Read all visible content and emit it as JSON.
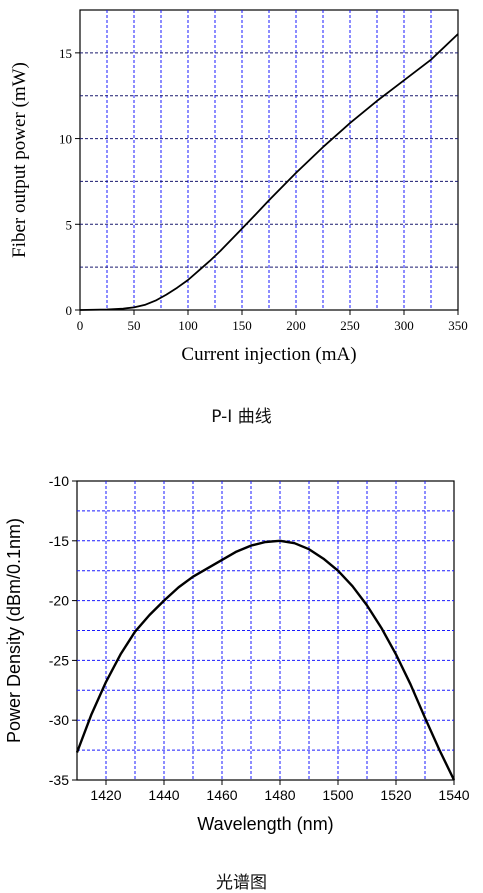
{
  "chart_data": [
    {
      "type": "line",
      "caption": "P-I 曲线",
      "title": "",
      "xlabel": "Current injection (mA)",
      "ylabel": "Fiber output power (mW)",
      "xlim": [
        0,
        350
      ],
      "ylim": [
        0,
        17.5
      ],
      "xticks": [
        0,
        50,
        100,
        150,
        200,
        250,
        300,
        350
      ],
      "yticks": [
        0,
        5,
        10,
        15
      ],
      "grid": true,
      "grid_color": "#1a1aff",
      "line_color": "#000000",
      "series": [
        {
          "x": [
            0,
            25,
            40,
            50,
            60,
            70,
            80,
            90,
            100,
            110,
            120,
            130,
            140,
            150,
            160,
            175,
            200,
            225,
            250,
            275,
            300,
            325,
            350
          ],
          "values": [
            0,
            0.03,
            0.08,
            0.15,
            0.3,
            0.55,
            0.9,
            1.3,
            1.75,
            2.3,
            2.85,
            3.45,
            4.1,
            4.75,
            5.4,
            6.4,
            8.0,
            9.5,
            10.9,
            12.2,
            13.4,
            14.6,
            16.1
          ]
        }
      ]
    },
    {
      "type": "line",
      "caption": "光谱图",
      "title": "",
      "xlabel": "Wavelength (nm)",
      "ylabel": "Power Density (dBm/0.1nm)",
      "xlim": [
        1410,
        1540
      ],
      "ylim": [
        -35,
        -10
      ],
      "xticks": [
        1420,
        1440,
        1460,
        1480,
        1500,
        1520,
        1540
      ],
      "yticks": [
        -35,
        -30,
        -25,
        -20,
        -15,
        -10
      ],
      "grid": true,
      "grid_color": "#1a1aff",
      "line_color": "#000000",
      "series": [
        {
          "x": [
            1410,
            1415,
            1420,
            1425,
            1430,
            1435,
            1440,
            1445,
            1450,
            1455,
            1460,
            1465,
            1470,
            1475,
            1480,
            1485,
            1490,
            1495,
            1500,
            1505,
            1510,
            1515,
            1520,
            1525,
            1530,
            1535,
            1540
          ],
          "values": [
            -32.7,
            -29.5,
            -26.8,
            -24.5,
            -22.6,
            -21.2,
            -20.0,
            -18.9,
            -18.0,
            -17.3,
            -16.6,
            -15.9,
            -15.4,
            -15.1,
            -15.0,
            -15.2,
            -15.7,
            -16.5,
            -17.5,
            -18.8,
            -20.4,
            -22.3,
            -24.5,
            -27.0,
            -29.8,
            -32.5,
            -35.0
          ]
        }
      ]
    }
  ]
}
